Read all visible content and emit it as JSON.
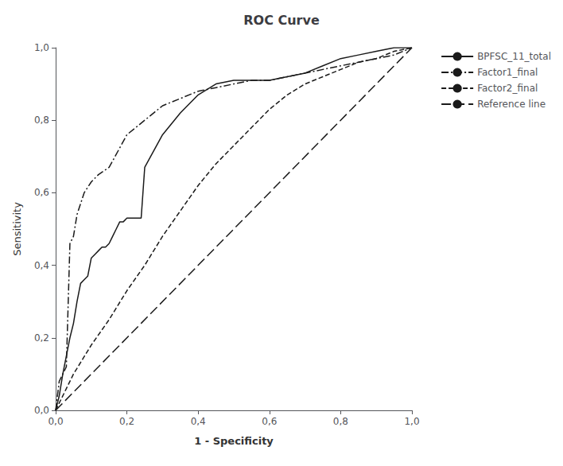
{
  "chart_data": {
    "type": "line",
    "title": "ROC Curve",
    "xlabel": "1 - Specificity",
    "ylabel": "Sensitivity",
    "xlim": [
      0.0,
      1.0
    ],
    "ylim": [
      0.0,
      1.0
    ],
    "xticks": [
      {
        "value": 0.0,
        "label": "0,0"
      },
      {
        "value": 0.2,
        "label": "0,2"
      },
      {
        "value": 0.4,
        "label": "0,4"
      },
      {
        "value": 0.6,
        "label": "0,6"
      },
      {
        "value": 0.8,
        "label": "0,8"
      },
      {
        "value": 1.0,
        "label": "1,0"
      }
    ],
    "yticks": [
      {
        "value": 0.0,
        "label": "0,0"
      },
      {
        "value": 0.2,
        "label": "0,2"
      },
      {
        "value": 0.4,
        "label": "0,4"
      },
      {
        "value": 0.6,
        "label": "0,6"
      },
      {
        "value": 0.8,
        "label": "0,8"
      },
      {
        "value": 1.0,
        "label": "1,0"
      }
    ],
    "grid": false,
    "legend": "right",
    "series": [
      {
        "name": "BPFSC_11_total",
        "color": "#1a1a1a",
        "line_style": "solid",
        "x": [
          0.0,
          0.01,
          0.02,
          0.03,
          0.04,
          0.05,
          0.06,
          0.07,
          0.08,
          0.09,
          0.1,
          0.11,
          0.12,
          0.13,
          0.14,
          0.15,
          0.16,
          0.17,
          0.18,
          0.19,
          0.2,
          0.21,
          0.22,
          0.23,
          0.24,
          0.25,
          0.3,
          0.35,
          0.4,
          0.45,
          0.5,
          0.55,
          0.6,
          0.65,
          0.7,
          0.75,
          0.8,
          0.85,
          0.9,
          0.95,
          1.0
        ],
        "values": [
          0.0,
          0.04,
          0.1,
          0.15,
          0.2,
          0.24,
          0.3,
          0.35,
          0.36,
          0.37,
          0.42,
          0.43,
          0.44,
          0.45,
          0.45,
          0.46,
          0.48,
          0.5,
          0.52,
          0.52,
          0.53,
          0.53,
          0.53,
          0.53,
          0.53,
          0.67,
          0.76,
          0.82,
          0.87,
          0.9,
          0.91,
          0.91,
          0.91,
          0.92,
          0.93,
          0.95,
          0.97,
          0.98,
          0.99,
          1.0,
          1.0
        ]
      },
      {
        "name": "Factor1_final",
        "color": "#1a1a1a",
        "line_style": "dashdot",
        "x": [
          0.0,
          0.01,
          0.02,
          0.03,
          0.04,
          0.05,
          0.06,
          0.07,
          0.08,
          0.1,
          0.12,
          0.15,
          0.2,
          0.25,
          0.3,
          0.35,
          0.4,
          0.45,
          0.5,
          0.55,
          0.6,
          0.65,
          0.7,
          0.75,
          0.8,
          0.85,
          0.9,
          0.95,
          1.0
        ],
        "values": [
          0.0,
          0.08,
          0.1,
          0.12,
          0.46,
          0.48,
          0.54,
          0.57,
          0.6,
          0.63,
          0.65,
          0.67,
          0.76,
          0.8,
          0.84,
          0.86,
          0.88,
          0.89,
          0.9,
          0.91,
          0.91,
          0.92,
          0.93,
          0.94,
          0.95,
          0.96,
          0.97,
          0.98,
          1.0
        ]
      },
      {
        "name": "Factor2_final",
        "color": "#1a1a1a",
        "line_style": "dashed",
        "x": [
          0.0,
          0.05,
          0.1,
          0.15,
          0.2,
          0.25,
          0.3,
          0.35,
          0.4,
          0.45,
          0.5,
          0.55,
          0.6,
          0.65,
          0.7,
          0.75,
          0.8,
          0.85,
          0.9,
          0.95,
          1.0
        ],
        "values": [
          0.0,
          0.1,
          0.18,
          0.25,
          0.33,
          0.4,
          0.48,
          0.55,
          0.62,
          0.68,
          0.73,
          0.78,
          0.83,
          0.87,
          0.9,
          0.92,
          0.94,
          0.96,
          0.97,
          0.99,
          1.0
        ]
      },
      {
        "name": "Reference line",
        "color": "#1a1a1a",
        "line_style": "longdash",
        "x": [
          0.0,
          1.0
        ],
        "values": [
          0.0,
          1.0
        ]
      }
    ]
  }
}
